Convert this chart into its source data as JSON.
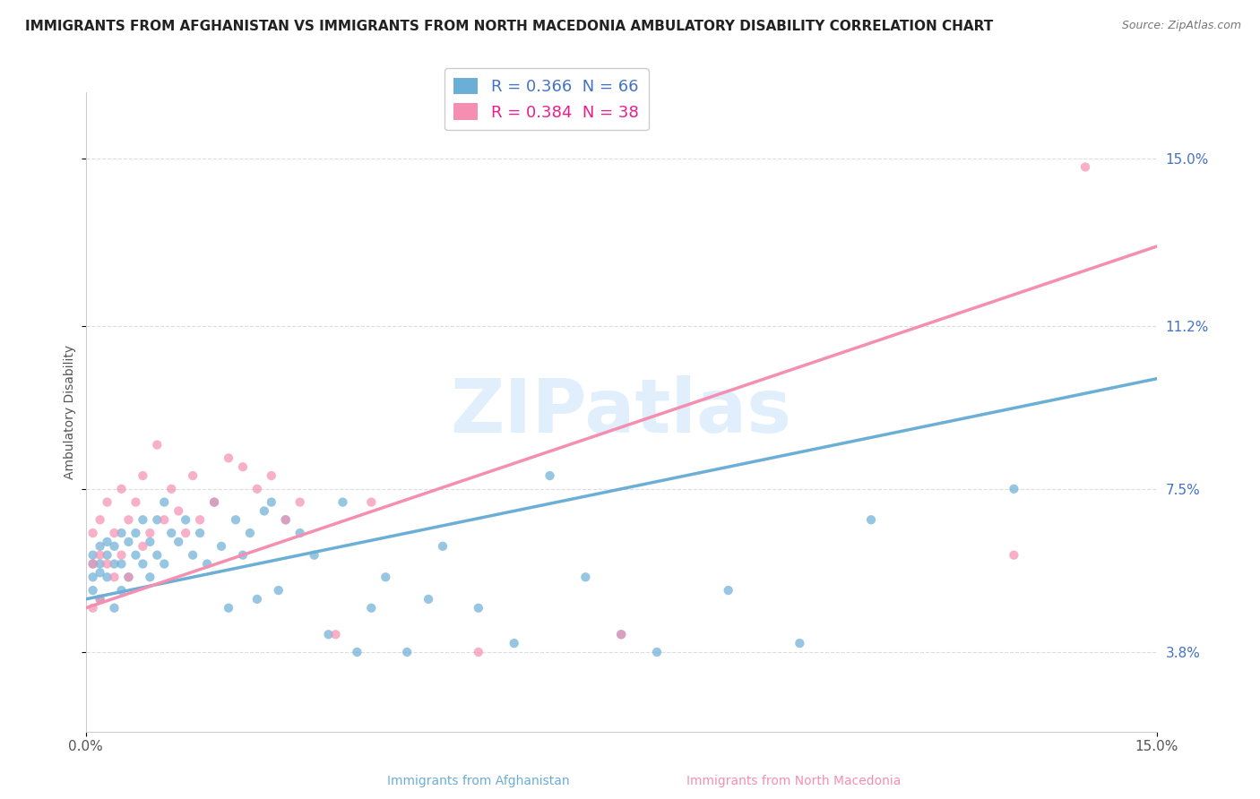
{
  "title": "IMMIGRANTS FROM AFGHANISTAN VS IMMIGRANTS FROM NORTH MACEDONIA AMBULATORY DISABILITY CORRELATION CHART",
  "source": "Source: ZipAtlas.com",
  "ylabel": "Ambulatory Disability",
  "xmin": 0.0,
  "xmax": 0.15,
  "ymin": 0.02,
  "ymax": 0.165,
  "yticks": [
    0.038,
    0.075,
    0.112,
    0.15
  ],
  "ytick_labels": [
    "3.8%",
    "7.5%",
    "11.2%",
    "15.0%"
  ],
  "xticks": [
    0.0,
    0.15
  ],
  "xtick_labels": [
    "0.0%",
    "15.0%"
  ],
  "afghanistan_color": "#6baed6",
  "north_macedonia_color": "#f48fb1",
  "legend_label_1": "R = 0.366  N = 66",
  "legend_label_2": "R = 0.384  N = 38",
  "watermark": "ZIPatlas",
  "afghanistan_scatter_x": [
    0.001,
    0.001,
    0.001,
    0.001,
    0.002,
    0.002,
    0.002,
    0.002,
    0.003,
    0.003,
    0.003,
    0.004,
    0.004,
    0.004,
    0.005,
    0.005,
    0.005,
    0.006,
    0.006,
    0.007,
    0.007,
    0.008,
    0.008,
    0.009,
    0.009,
    0.01,
    0.01,
    0.011,
    0.011,
    0.012,
    0.013,
    0.014,
    0.015,
    0.016,
    0.017,
    0.018,
    0.019,
    0.02,
    0.021,
    0.022,
    0.023,
    0.024,
    0.025,
    0.026,
    0.027,
    0.028,
    0.03,
    0.032,
    0.034,
    0.036,
    0.038,
    0.04,
    0.042,
    0.045,
    0.048,
    0.05,
    0.055,
    0.06,
    0.065,
    0.07,
    0.075,
    0.08,
    0.09,
    0.1,
    0.11,
    0.13
  ],
  "afghanistan_scatter_y": [
    0.06,
    0.058,
    0.055,
    0.052,
    0.062,
    0.058,
    0.056,
    0.05,
    0.063,
    0.06,
    0.055,
    0.062,
    0.058,
    0.048,
    0.065,
    0.058,
    0.052,
    0.063,
    0.055,
    0.065,
    0.06,
    0.068,
    0.058,
    0.063,
    0.055,
    0.068,
    0.06,
    0.072,
    0.058,
    0.065,
    0.063,
    0.068,
    0.06,
    0.065,
    0.058,
    0.072,
    0.062,
    0.048,
    0.068,
    0.06,
    0.065,
    0.05,
    0.07,
    0.072,
    0.052,
    0.068,
    0.065,
    0.06,
    0.042,
    0.072,
    0.038,
    0.048,
    0.055,
    0.038,
    0.05,
    0.062,
    0.048,
    0.04,
    0.078,
    0.055,
    0.042,
    0.038,
    0.052,
    0.04,
    0.068,
    0.075
  ],
  "north_macedonia_scatter_x": [
    0.001,
    0.001,
    0.001,
    0.002,
    0.002,
    0.002,
    0.003,
    0.003,
    0.004,
    0.004,
    0.005,
    0.005,
    0.006,
    0.006,
    0.007,
    0.008,
    0.008,
    0.009,
    0.01,
    0.011,
    0.012,
    0.013,
    0.014,
    0.015,
    0.016,
    0.018,
    0.02,
    0.022,
    0.024,
    0.026,
    0.028,
    0.03,
    0.035,
    0.04,
    0.055,
    0.075,
    0.13,
    0.14
  ],
  "north_macedonia_scatter_y": [
    0.065,
    0.058,
    0.048,
    0.068,
    0.06,
    0.05,
    0.072,
    0.058,
    0.065,
    0.055,
    0.075,
    0.06,
    0.068,
    0.055,
    0.072,
    0.078,
    0.062,
    0.065,
    0.085,
    0.068,
    0.075,
    0.07,
    0.065,
    0.078,
    0.068,
    0.072,
    0.082,
    0.08,
    0.075,
    0.078,
    0.068,
    0.072,
    0.042,
    0.072,
    0.038,
    0.042,
    0.06,
    0.148
  ],
  "afg_line_x": [
    0.0,
    0.15
  ],
  "afg_line_y": [
    0.05,
    0.1
  ],
  "mac_line_x": [
    0.0,
    0.15
  ],
  "mac_line_y": [
    0.048,
    0.13
  ],
  "grid_color": "#dddddd",
  "background_color": "#ffffff",
  "title_fontsize": 11,
  "axis_label_fontsize": 10,
  "tick_fontsize": 11,
  "legend_fontsize": 13
}
